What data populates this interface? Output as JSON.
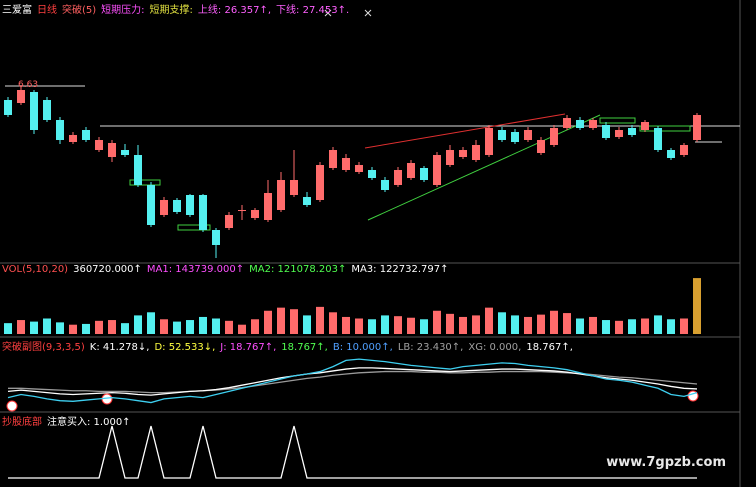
{
  "header": [
    {
      "text": "三爱富",
      "color": "#ffffff"
    },
    {
      "text": "日线",
      "color": "#ff4040"
    },
    {
      "text": "突破(5)",
      "color": "#ff6060"
    },
    {
      "text": "短期压力:",
      "color": "#ff50ff"
    },
    {
      "text": "短期支撑:",
      "color": "#e0e040"
    },
    {
      "text": "上线: 26.357↑,",
      "color": "#ff60ff"
    },
    {
      "text": "下线: 27.453↑.",
      "color": "#ff60ff"
    }
  ],
  "high_label": "6.63",
  "watermark": "www.7gpzb.com",
  "chart_data": [
    {
      "type": "candlestick",
      "up_color": "#ff6b6b",
      "down_color": "#54f0f0",
      "ylim": [
        0,
        250
      ],
      "open": [
        162,
        159,
        170,
        162,
        142,
        120,
        132,
        112,
        105,
        112,
        107,
        77,
        47,
        62,
        67,
        67,
        32,
        34,
        52,
        44,
        42,
        52,
        67,
        65,
        62,
        94,
        92,
        90,
        92,
        82,
        77,
        84,
        94,
        77,
        97,
        105,
        102,
        107,
        132,
        130,
        122,
        109,
        117,
        134,
        142,
        134,
        137,
        125,
        134,
        132,
        134,
        112,
        107,
        122
      ],
      "close": [
        147,
        172,
        132,
        142,
        122,
        127,
        122,
        122,
        119,
        107,
        77,
        37,
        62,
        50,
        47,
        32,
        17,
        47,
        52,
        52,
        69,
        82,
        82,
        57,
        97,
        112,
        104,
        97,
        84,
        72,
        92,
        99,
        82,
        107,
        112,
        112,
        117,
        134,
        122,
        120,
        132,
        122,
        134,
        144,
        134,
        142,
        124,
        132,
        127,
        140,
        112,
        104,
        117,
        147
      ],
      "high": [
        165,
        177,
        172,
        165,
        145,
        130,
        135,
        125,
        122,
        118,
        117,
        80,
        65,
        64,
        68,
        68,
        34,
        50,
        57,
        54,
        82,
        90,
        112,
        70,
        100,
        115,
        108,
        100,
        95,
        85,
        95,
        102,
        96,
        110,
        117,
        115,
        122,
        137,
        135,
        133,
        135,
        125,
        137,
        147,
        145,
        144,
        140,
        135,
        137,
        142,
        136,
        114,
        119,
        149
      ],
      "low": [
        145,
        157,
        128,
        140,
        118,
        118,
        120,
        110,
        100,
        105,
        75,
        35,
        45,
        48,
        45,
        30,
        4,
        32,
        42,
        42,
        40,
        50,
        65,
        55,
        60,
        92,
        90,
        88,
        82,
        70,
        75,
        82,
        80,
        75,
        95,
        103,
        100,
        105,
        120,
        118,
        120,
        107,
        115,
        132,
        132,
        132,
        122,
        123,
        125,
        130,
        110,
        102,
        105,
        120
      ]
    },
    {
      "type": "bar",
      "ylim": [
        0,
        400000
      ],
      "last_color": "#d9a030",
      "header": [
        {
          "text": "VOL(5,10,20)",
          "color": "#ff5050"
        },
        {
          "text": "360720.000↑",
          "color": "#ffffff"
        },
        {
          "text": "MA1: 143739.000↑",
          "color": "#ff50ff"
        },
        {
          "text": "MA2: 121078.203↑",
          "color": "#50ff50"
        },
        {
          "text": "MA3: 122732.797↑",
          "color": "#ffffff"
        }
      ],
      "values": [
        70000,
        90000,
        80000,
        100000,
        75000,
        60000,
        65000,
        85000,
        90000,
        70000,
        120000,
        140000,
        95000,
        80000,
        90000,
        110000,
        100000,
        85000,
        60000,
        95000,
        150000,
        170000,
        160000,
        120000,
        175000,
        140000,
        110000,
        100000,
        95000,
        120000,
        115000,
        105000,
        95000,
        150000,
        130000,
        110000,
        120000,
        170000,
        140000,
        120000,
        110000,
        125000,
        150000,
        135000,
        100000,
        110000,
        90000,
        85000,
        95000,
        100000,
        120000,
        95000,
        100000,
        360720
      ]
    },
    {
      "type": "line",
      "ylim": [
        0,
        100
      ],
      "header": [
        {
          "text": "突破副图(9,3,3,5)",
          "color": "#ff4040"
        },
        {
          "text": "K: 41.278↓,",
          "color": "#ffffff"
        },
        {
          "text": "D: 52.533↓,",
          "color": "#ffff40"
        },
        {
          "text": "J: 18.767↑,",
          "color": "#ff50ff"
        },
        {
          "text": "18.767↑,",
          "color": "#50ff50"
        },
        {
          "text": "B: 10.000↑,",
          "color": "#50a0ff"
        },
        {
          "text": "LB: 23.430↑,",
          "color": "#a0a0a0"
        },
        {
          "text": "XG: 0.000,",
          "color": "#a0a0a0"
        },
        {
          "text": "18.767↑,",
          "color": "#ffffff"
        }
      ],
      "series": [
        {
          "color": "#9a9a9a",
          "values": [
            35,
            35,
            34,
            33,
            32,
            31,
            31,
            30,
            30,
            30,
            29,
            28,
            28,
            29,
            30,
            31,
            32,
            34,
            36,
            39,
            42,
            45,
            48,
            51,
            53,
            56,
            58,
            60,
            61,
            62,
            62,
            62,
            61,
            61,
            60,
            60,
            61,
            61,
            62,
            62,
            62,
            62,
            61,
            60,
            59,
            57,
            55,
            53,
            52,
            50,
            48,
            46,
            44,
            42
          ]
        },
        {
          "color": "#ffffff",
          "values": [
            30,
            32,
            30,
            28,
            26,
            25,
            26,
            27,
            28,
            27,
            25,
            24,
            26,
            28,
            30,
            31,
            33,
            36,
            40,
            44,
            48,
            52,
            55,
            58,
            60,
            63,
            66,
            68,
            68,
            67,
            66,
            65,
            64,
            63,
            62,
            63,
            64,
            65,
            66,
            66,
            65,
            64,
            63,
            61,
            58,
            55,
            52,
            50,
            48,
            45,
            42,
            38,
            35,
            34
          ]
        },
        {
          "color": "#3ecff0",
          "values": [
            20,
            25,
            22,
            18,
            15,
            14,
            16,
            18,
            20,
            18,
            15,
            12,
            18,
            20,
            22,
            20,
            25,
            30,
            35,
            40,
            45,
            50,
            55,
            58,
            62,
            70,
            80,
            82,
            80,
            78,
            75,
            72,
            70,
            68,
            66,
            70,
            72,
            74,
            76,
            75,
            72,
            70,
            68,
            65,
            60,
            55,
            50,
            48,
            45,
            40,
            35,
            25,
            22,
            28
          ]
        }
      ]
    },
    {
      "type": "line",
      "ylim": [
        0,
        1
      ],
      "header": [
        {
          "text": "抄股底部",
          "color": "#ff4040"
        },
        {
          "text": "注意买入: 1.000↑",
          "color": "#ffffff"
        }
      ],
      "series": [
        {
          "color": "#ffffff",
          "values": [
            0,
            0,
            0,
            0,
            0,
            0,
            0,
            0,
            1,
            0,
            0,
            1,
            0,
            0,
            0,
            1,
            0,
            0,
            0,
            0,
            0,
            0,
            1,
            0,
            0,
            0,
            0,
            0,
            0,
            0,
            0,
            0,
            0,
            0,
            0,
            0,
            0,
            0,
            0,
            0,
            0,
            0,
            0,
            0,
            0,
            0,
            0,
            0,
            0,
            0,
            0,
            0,
            0,
            0
          ]
        }
      ]
    }
  ]
}
